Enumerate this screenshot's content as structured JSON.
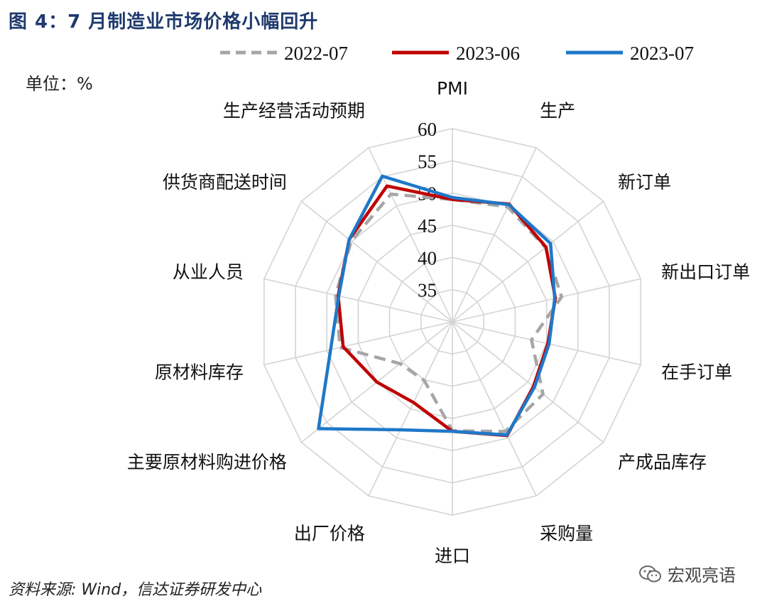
{
  "header": {
    "title": "图 4：7 月制造业市场价格小幅回升",
    "unit": "单位：%"
  },
  "footer": {
    "source": "资料来源: Wind，信达证券研发中心",
    "watermark": "宏观亮语"
  },
  "chart_data": {
    "type": "radar",
    "categories": [
      "PMI",
      "生产",
      "新订单",
      "新出口订单",
      "在手订单",
      "产成品库存",
      "采购量",
      "进口",
      "出厂价格",
      "主要原材料购进价格",
      "原材料库存",
      "从业人员",
      "供货商配送时间",
      "生产经营活动预期"
    ],
    "ticks": [
      35,
      40,
      45,
      50,
      55,
      60
    ],
    "rlim": [
      30,
      60
    ],
    "grid": true,
    "legend_position": "top",
    "series": [
      {
        "name": "2022-07",
        "color": "#a6a6a6",
        "dash": "dashed",
        "values": [
          49.0,
          49.8,
          48.5,
          47.4,
          42.6,
          48.0,
          48.9,
          46.9,
          40.1,
          40.4,
          47.9,
          48.6,
          50.1,
          52.0
        ]
      },
      {
        "name": "2023-06",
        "color": "#c00000",
        "dash": "solid",
        "values": [
          49.0,
          50.3,
          48.6,
          46.4,
          45.2,
          46.1,
          49.6,
          47.0,
          43.9,
          45.0,
          47.4,
          48.2,
          50.5,
          53.4
        ]
      },
      {
        "name": "2023-07",
        "color": "#1f78c8",
        "dash": "solid",
        "values": [
          49.3,
          50.2,
          49.5,
          46.3,
          45.4,
          46.3,
          49.5,
          47.0,
          48.6,
          56.6,
          49.4,
          48.1,
          50.5,
          55.1
        ]
      }
    ]
  }
}
